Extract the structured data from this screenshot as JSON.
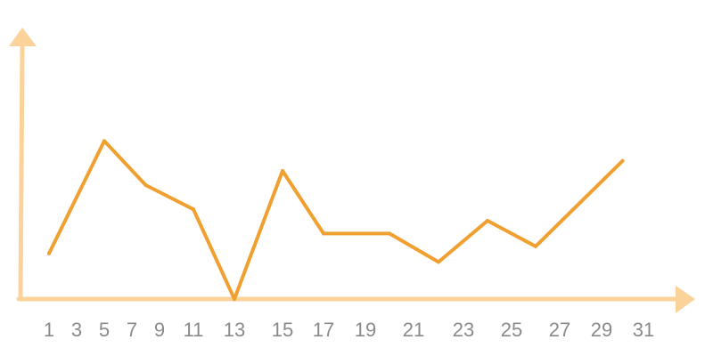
{
  "chart_data": {
    "type": "line",
    "x_ticks": [
      1,
      3,
      5,
      7,
      9,
      11,
      13,
      15,
      17,
      19,
      21,
      23,
      25,
      27,
      29,
      31
    ],
    "series": [
      {
        "points": [
          {
            "x": 1,
            "y": 32
          },
          {
            "x": 5,
            "y": 111
          },
          {
            "x": 8,
            "y": 80
          },
          {
            "x": 11,
            "y": 63
          },
          {
            "x": 13,
            "y": 0
          },
          {
            "x": 15,
            "y": 90
          },
          {
            "x": 17,
            "y": 46
          },
          {
            "x": 20,
            "y": 46
          },
          {
            "x": 22,
            "y": 26
          },
          {
            "x": 24,
            "y": 55
          },
          {
            "x": 26,
            "y": 37
          },
          {
            "x": 30,
            "y": 97
          }
        ]
      }
    ],
    "xlim": [
      0,
      33
    ],
    "ylim": [
      0,
      185
    ],
    "grid": false,
    "colors": {
      "line": "#f0a030",
      "axis": "#fbd39a",
      "tick_text": "#8a8a8a"
    }
  }
}
